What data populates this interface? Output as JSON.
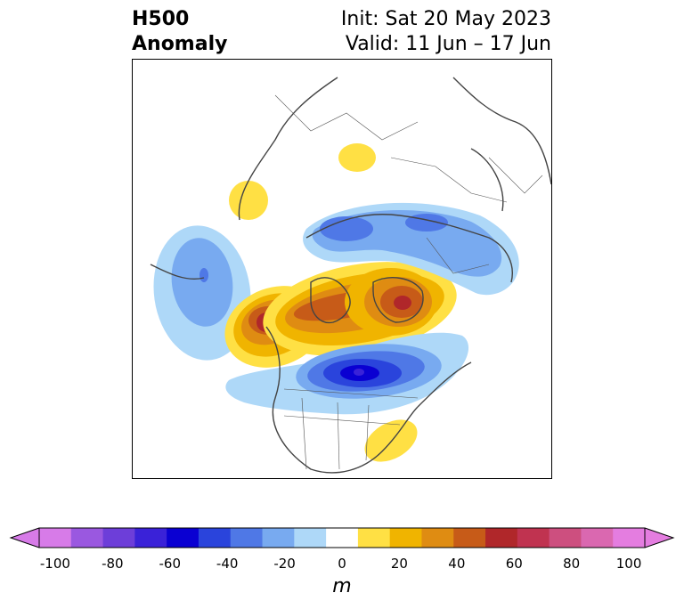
{
  "header": {
    "left_lines": [
      "H500",
      "Anomaly"
    ],
    "right_lines": [
      "Init: Sat 20 May 2023",
      "Valid: 11 Jun – 17 Jun"
    ]
  },
  "colorbar": {
    "unit": "m",
    "ticks": [
      "-100",
      "-80",
      "-60",
      "-40",
      "-20",
      "0",
      "20",
      "40",
      "60",
      "80",
      "100"
    ],
    "colors": [
      "#d77be8",
      "#9a58e0",
      "#6d3ed9",
      "#3a22d8",
      "#0a00d2",
      "#2a44dc",
      "#4f78e6",
      "#78aaf0",
      "#aed8f8",
      "#ffffff",
      "#ffe044",
      "#f0b400",
      "#df8c12",
      "#c75b18",
      "#b0272a",
      "#c03350",
      "#cd4f7f",
      "#da68b0",
      "#e47de0"
    ],
    "extend_low_color": "#d77be8",
    "extend_high_color": "#e47de0"
  }
}
